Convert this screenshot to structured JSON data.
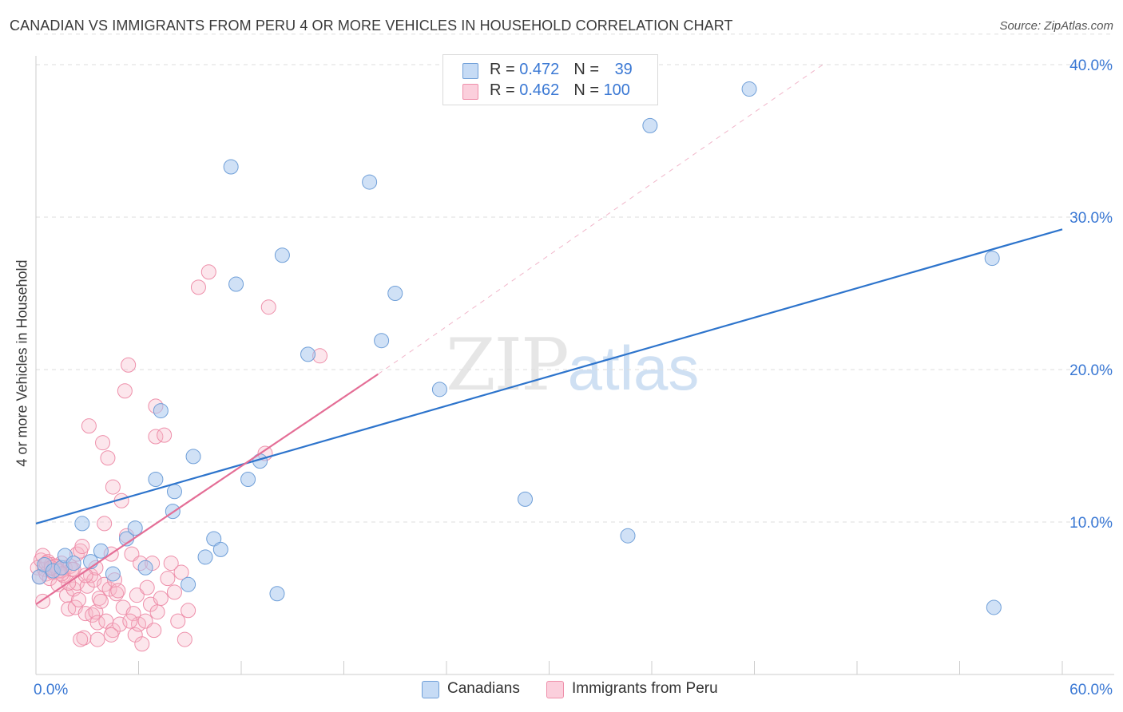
{
  "header": {
    "title": "CANADIAN VS IMMIGRANTS FROM PERU 4 OR MORE VEHICLES IN HOUSEHOLD CORRELATION CHART",
    "source": "Source: ZipAtlas.com"
  },
  "watermark": {
    "zip": "ZIP",
    "atlas": "atlas"
  },
  "stats": {
    "canadians": {
      "r_label": "R = ",
      "r_value": "0.472",
      "n_label": "N = ",
      "n_value": "39"
    },
    "peru": {
      "r_label": "R = ",
      "r_value": "0.462",
      "n_label": "N = ",
      "n_value": "100"
    }
  },
  "legend": {
    "canadians": "Canadians",
    "peru": "Immigrants from Peru"
  },
  "colors": {
    "canadians_fill": "#a9c8ef",
    "canadians_stroke": "#6f9fd8",
    "canadians_line": "#2d74cc",
    "peru_fill": "#f6b8c9",
    "peru_stroke": "#ee8faa",
    "peru_line": "#e46e96",
    "tick_label": "#3a78d4"
  },
  "chart_data": {
    "type": "scatter",
    "title": "CANADIAN VS IMMIGRANTS FROM PERU 4 OR MORE VEHICLES IN HOUSEHOLD CORRELATION CHART",
    "xlabel": "",
    "ylabel": "4 or more Vehicles in Household",
    "xlim": [
      0,
      60
    ],
    "ylim": [
      0,
      42
    ],
    "x_tick_labels": [
      {
        "value": 0,
        "label": "0.0%"
      },
      {
        "value": 60,
        "label": "60.0%"
      }
    ],
    "y_tick_labels": [
      {
        "value": 10,
        "label": "10.0%"
      },
      {
        "value": 20,
        "label": "20.0%"
      },
      {
        "value": 30,
        "label": "30.0%"
      },
      {
        "value": 40,
        "label": "40.0%"
      }
    ],
    "x_minor_ticks": [
      6,
      12,
      18,
      24,
      30,
      36,
      42,
      48,
      54,
      60
    ],
    "grid": true,
    "legend_position": "bottom-center",
    "series": [
      {
        "name": "Canadians",
        "r": 0.472,
        "n": 39,
        "trend": {
          "x0": 0,
          "y0": 9.9,
          "x1": 60,
          "y1": 29.2
        },
        "points": [
          [
            0.2,
            6.4
          ],
          [
            0.5,
            7.2
          ],
          [
            1.0,
            6.8
          ],
          [
            1.5,
            7.0
          ],
          [
            1.7,
            7.8
          ],
          [
            2.2,
            7.3
          ],
          [
            2.7,
            9.9
          ],
          [
            3.2,
            7.4
          ],
          [
            3.8,
            8.1
          ],
          [
            4.5,
            6.6
          ],
          [
            5.3,
            8.9
          ],
          [
            5.8,
            9.6
          ],
          [
            6.4,
            7.0
          ],
          [
            7.0,
            12.8
          ],
          [
            7.3,
            17.3
          ],
          [
            8.0,
            10.7
          ],
          [
            8.1,
            12.0
          ],
          [
            8.9,
            5.9
          ],
          [
            9.2,
            14.3
          ],
          [
            9.9,
            7.7
          ],
          [
            10.4,
            8.9
          ],
          [
            10.8,
            8.2
          ],
          [
            11.4,
            33.3
          ],
          [
            11.7,
            25.6
          ],
          [
            12.4,
            12.8
          ],
          [
            13.1,
            14.0
          ],
          [
            14.1,
            5.3
          ],
          [
            14.4,
            27.5
          ],
          [
            15.9,
            21.0
          ],
          [
            19.5,
            32.3
          ],
          [
            20.2,
            21.9
          ],
          [
            21.0,
            25.0
          ],
          [
            23.6,
            18.7
          ],
          [
            28.6,
            11.5
          ],
          [
            34.6,
            9.1
          ],
          [
            35.9,
            36.0
          ],
          [
            41.7,
            38.4
          ],
          [
            55.9,
            27.3
          ],
          [
            56.0,
            4.4
          ]
        ]
      },
      {
        "name": "Immigrants from Peru",
        "r": 0.462,
        "n": 100,
        "trend": {
          "x0": 0,
          "y0": 4.6,
          "x1": 20.0,
          "y1": 19.7
        },
        "trend_dashed": {
          "x0": 20.0,
          "y0": 19.7,
          "x1": 46.0,
          "y1": 40.0
        },
        "points": [
          [
            0.1,
            7.0
          ],
          [
            0.2,
            6.4
          ],
          [
            0.3,
            7.5
          ],
          [
            0.4,
            4.8
          ],
          [
            0.4,
            7.8
          ],
          [
            0.5,
            6.9
          ],
          [
            0.6,
            6.6
          ],
          [
            0.7,
            7.4
          ],
          [
            0.8,
            6.3
          ],
          [
            0.9,
            7.2
          ],
          [
            1.0,
            6.7
          ],
          [
            1.1,
            6.9
          ],
          [
            1.2,
            7.1
          ],
          [
            1.3,
            5.9
          ],
          [
            1.4,
            6.8
          ],
          [
            1.5,
            7.3
          ],
          [
            1.6,
            6.5
          ],
          [
            1.7,
            7.0
          ],
          [
            1.8,
            5.2
          ],
          [
            1.9,
            4.3
          ],
          [
            2.0,
            7.1
          ],
          [
            2.1,
            6.9
          ],
          [
            2.2,
            5.6
          ],
          [
            2.3,
            4.4
          ],
          [
            2.4,
            6.0
          ],
          [
            2.4,
            7.9
          ],
          [
            2.5,
            4.9
          ],
          [
            2.6,
            8.1
          ],
          [
            2.7,
            8.4
          ],
          [
            2.8,
            2.4
          ],
          [
            2.9,
            4.0
          ],
          [
            3.0,
            5.8
          ],
          [
            3.1,
            16.3
          ],
          [
            3.2,
            6.5
          ],
          [
            3.3,
            3.9
          ],
          [
            3.4,
            6.2
          ],
          [
            3.5,
            7.0
          ],
          [
            3.5,
            4.1
          ],
          [
            3.6,
            3.4
          ],
          [
            3.7,
            5.0
          ],
          [
            3.8,
            4.8
          ],
          [
            3.9,
            15.2
          ],
          [
            4.0,
            9.9
          ],
          [
            4.0,
            5.9
          ],
          [
            4.1,
            3.5
          ],
          [
            4.2,
            14.2
          ],
          [
            4.3,
            5.6
          ],
          [
            4.4,
            7.9
          ],
          [
            4.5,
            2.9
          ],
          [
            4.5,
            12.3
          ],
          [
            4.6,
            6.2
          ],
          [
            4.7,
            5.3
          ],
          [
            4.8,
            5.5
          ],
          [
            4.9,
            3.3
          ],
          [
            5.0,
            11.4
          ],
          [
            5.1,
            4.4
          ],
          [
            5.2,
            18.6
          ],
          [
            5.3,
            9.1
          ],
          [
            5.4,
            20.3
          ],
          [
            5.6,
            7.9
          ],
          [
            5.7,
            4.0
          ],
          [
            5.8,
            2.6
          ],
          [
            5.9,
            5.2
          ],
          [
            6.0,
            3.3
          ],
          [
            6.1,
            7.3
          ],
          [
            6.2,
            2.0
          ],
          [
            6.4,
            3.5
          ],
          [
            6.5,
            5.7
          ],
          [
            6.7,
            4.6
          ],
          [
            6.9,
            2.9
          ],
          [
            7.0,
            17.6
          ],
          [
            7.0,
            15.6
          ],
          [
            7.1,
            4.1
          ],
          [
            7.3,
            5.0
          ],
          [
            7.5,
            15.7
          ],
          [
            7.7,
            6.3
          ],
          [
            7.9,
            7.3
          ],
          [
            8.1,
            5.4
          ],
          [
            8.3,
            3.5
          ],
          [
            8.5,
            6.7
          ],
          [
            8.7,
            2.3
          ],
          [
            8.9,
            4.2
          ],
          [
            9.5,
            25.4
          ],
          [
            10.1,
            26.4
          ],
          [
            13.4,
            14.5
          ],
          [
            13.6,
            24.1
          ],
          [
            16.6,
            20.9
          ],
          [
            0.6,
            7.3
          ],
          [
            1.3,
            6.8
          ],
          [
            2.9,
            6.5
          ],
          [
            1.1,
            7.1
          ],
          [
            3.6,
            2.3
          ],
          [
            1.9,
            6.0
          ],
          [
            4.4,
            2.6
          ],
          [
            2.6,
            2.3
          ],
          [
            1.5,
            6.6
          ],
          [
            0.9,
            7.0
          ],
          [
            5.5,
            3.5
          ],
          [
            6.8,
            7.3
          ],
          [
            2.2,
            6.9
          ]
        ]
      }
    ]
  }
}
